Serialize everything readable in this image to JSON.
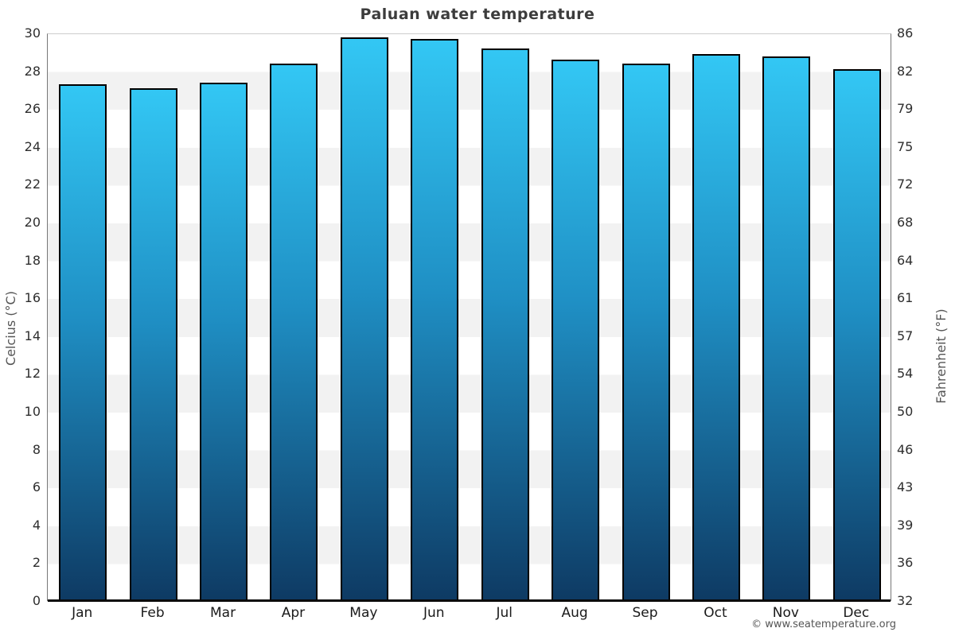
{
  "title": "Paluan water temperature",
  "watermark": "© www.seatemperature.org",
  "chart_data": {
    "type": "bar",
    "title": "Paluan water temperature",
    "categories": [
      "Jan",
      "Feb",
      "Mar",
      "Apr",
      "May",
      "Jun",
      "Jul",
      "Aug",
      "Sep",
      "Oct",
      "Nov",
      "Dec"
    ],
    "values": [
      27.3,
      27.1,
      27.4,
      28.4,
      29.8,
      29.7,
      29.2,
      28.6,
      28.4,
      28.9,
      28.8,
      28.1
    ],
    "unit": "°C",
    "ylabel_left": "Celcius (°C)",
    "ylabel_right": "Fahrenheit (°F)",
    "xlabel": "",
    "ylim": [
      0,
      30
    ],
    "celsius_ticks": [
      0,
      2,
      4,
      6,
      8,
      10,
      12,
      14,
      16,
      18,
      20,
      22,
      24,
      26,
      28,
      30
    ],
    "fahrenheit_ticks": [
      "32",
      "36",
      "39",
      "43",
      "46",
      "50",
      "54",
      "57",
      "61",
      "64",
      "68",
      "72",
      "75",
      "79",
      "82",
      "86"
    ],
    "grid": "alternating horizontal bands every 2°C",
    "legend": "none",
    "colors": {
      "bar_gradient_top": "#33c7f4",
      "bar_gradient_bottom": "#0e3a63",
      "bar_border": "#000000",
      "band_white": "#ffffff",
      "band_gray": "#f2f2f2",
      "baseline": "#0a0a0a",
      "axis_line": "#777777",
      "top_gridline": "#cccccc",
      "title_color": "#3c3c3c",
      "tick_color": "#2e2e2e",
      "month_color": "#1a1a1a",
      "axis_label_color": "#555555",
      "watermark_color": "#555555"
    }
  }
}
